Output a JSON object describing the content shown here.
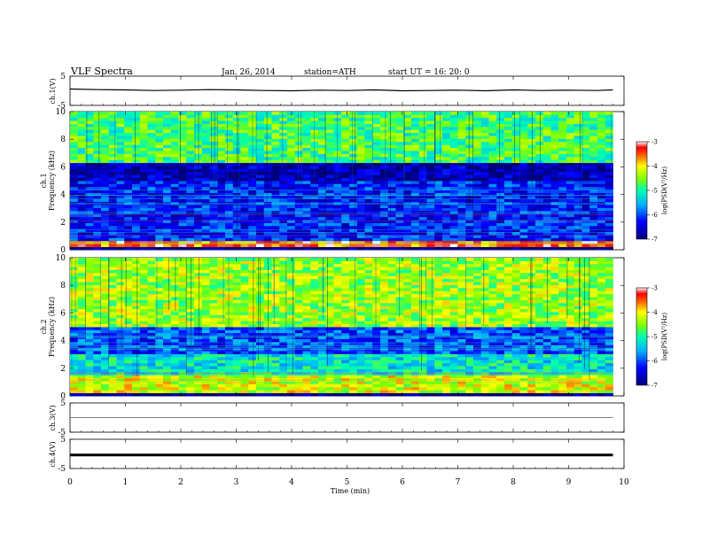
{
  "header": {
    "title": "VLF  Spectra",
    "date": "Jan. 26, 2014",
    "station": "station=ATH",
    "start_ut": "start  UT =   16: 20: 0"
  },
  "chart_data": [
    {
      "type": "line",
      "panel": "ch1-waveform",
      "ylabel": "ch.1(V)",
      "ylim": [
        -5,
        5
      ],
      "y_ticks": [
        "5",
        "-5"
      ],
      "x": [
        0,
        0.5,
        1,
        1.5,
        2,
        2.5,
        3,
        3.5,
        4,
        4.5,
        5,
        5.5,
        6,
        6.5,
        7,
        7.5,
        8,
        8.5,
        9,
        9.5,
        9.8
      ],
      "y": [
        0.6,
        0.4,
        0.3,
        0.1,
        0.2,
        0.4,
        0.3,
        0.1,
        0.0,
        0.2,
        0.1,
        0.3,
        0.0,
        0.1,
        0.2,
        0.0,
        0.3,
        0.1,
        0.2,
        0.1,
        0.3
      ]
    },
    {
      "type": "heatmap",
      "panel": "ch1-spectrogram",
      "ylabel": "ch.1\nFrequency (kHz)",
      "ylim": [
        0,
        10
      ],
      "y_ticks": [
        "0",
        "2",
        "4",
        "6",
        "8",
        "10"
      ],
      "colorbar": {
        "label": "log(PSD(V²/Hz)",
        "range": [
          -7,
          -3
        ],
        "ticks": [
          "-3",
          "-4",
          "-5",
          "-6",
          "-7"
        ]
      },
      "bands": [
        {
          "from_khz": 0.3,
          "to_khz": 0.7,
          "log_psd": -3.5
        },
        {
          "from_khz": 0.7,
          "to_khz": 5.0,
          "log_psd": -6.2
        },
        {
          "from_khz": 5.0,
          "to_khz": 6.2,
          "log_psd": -6.7
        },
        {
          "from_khz": 6.2,
          "to_khz": 10.0,
          "log_psd": -4.8
        }
      ]
    },
    {
      "type": "heatmap",
      "panel": "ch2-spectrogram",
      "ylabel": "ch.2\nFrequency (kHz)",
      "ylim": [
        0,
        10
      ],
      "y_ticks": [
        "0",
        "2",
        "4",
        "6",
        "8",
        "10"
      ],
      "colorbar": {
        "label": "log(PSD(V²/Hz)",
        "range": [
          -7,
          -3
        ],
        "ticks": [
          "-3",
          "-4",
          "-5",
          "-6",
          "-7"
        ]
      },
      "bands": [
        {
          "from_khz": 0.3,
          "to_khz": 1.5,
          "log_psd": -4.2
        },
        {
          "from_khz": 1.5,
          "to_khz": 3.0,
          "log_psd": -5.2
        },
        {
          "from_khz": 3.0,
          "to_khz": 5.0,
          "log_psd": -6.0
        },
        {
          "from_khz": 5.0,
          "to_khz": 10.0,
          "log_psd": -4.4
        }
      ]
    },
    {
      "type": "line",
      "panel": "ch3-waveform",
      "ylabel": "ch.3(V)",
      "ylim": [
        -5,
        5
      ],
      "y_ticks": [
        "5",
        "-5"
      ],
      "x": [
        0,
        9.8
      ],
      "y": [
        0,
        0
      ]
    },
    {
      "type": "line",
      "panel": "ch4-waveform",
      "ylabel": "ch.4(V)",
      "ylim": [
        -5,
        5
      ],
      "y_ticks": [
        "5",
        "-5"
      ],
      "x": [
        0,
        9.8
      ],
      "y": [
        -0.4,
        -0.4
      ]
    }
  ],
  "x_axis": {
    "label": "Time  (min)",
    "range": [
      0,
      10
    ],
    "ticks": [
      "0",
      "1",
      "2",
      "3",
      "4",
      "5",
      "6",
      "7",
      "8",
      "9",
      "10"
    ]
  },
  "colors": {
    "scale": [
      "#000080",
      "#0000ff",
      "#00a0ff",
      "#00ffc0",
      "#80ff00",
      "#ffff00",
      "#ff8000",
      "#ff0000",
      "#ffffff"
    ],
    "axes": "#000000"
  }
}
